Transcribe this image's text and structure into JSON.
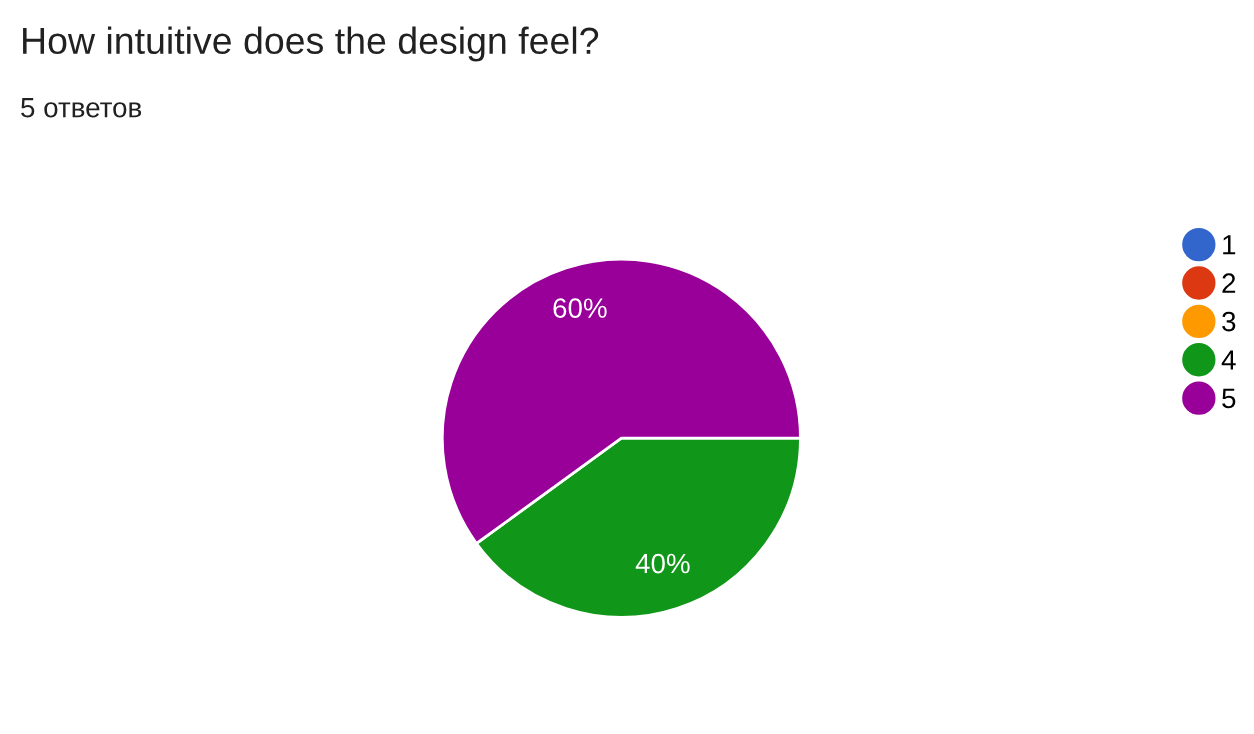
{
  "chart_data": {
    "type": "pie",
    "title": "How intuitive does the design feel?",
    "subtitle": "5 ответов",
    "categories": [
      "1",
      "2",
      "3",
      "4",
      "5"
    ],
    "values": [
      0,
      0,
      0,
      40,
      60
    ],
    "colors": [
      "#3366cc",
      "#dc3912",
      "#ff9900",
      "#109618",
      "#990099"
    ],
    "value_labels": [
      null,
      null,
      null,
      "40%",
      "60%"
    ],
    "legend": "right"
  }
}
